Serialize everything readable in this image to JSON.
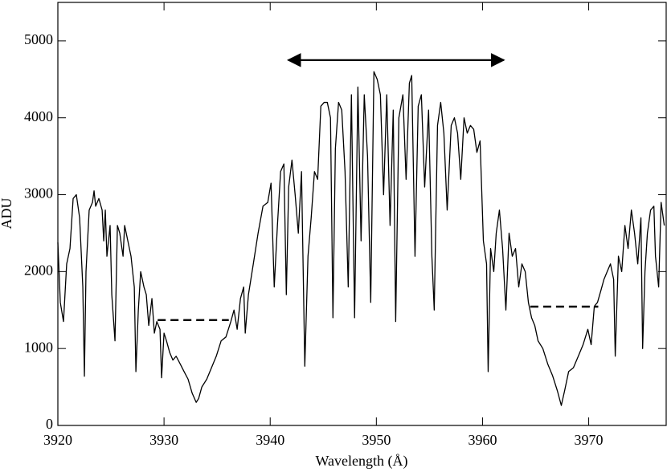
{
  "chart_data": {
    "type": "line",
    "xlabel": "Wavelength (Å)",
    "ylabel": "ADU",
    "color": "#000000",
    "xlim": [
      3920,
      3977.3
    ],
    "ylim": [
      0,
      5500
    ],
    "xticks": [
      3920,
      3930,
      3940,
      3950,
      3960,
      3970
    ],
    "yticks": [
      0,
      1000,
      2000,
      3000,
      4000,
      5000
    ],
    "x": [
      3920.0,
      3920.23,
      3920.53,
      3920.83,
      3921.14,
      3921.44,
      3921.74,
      3922.05,
      3922.35,
      3922.5,
      3922.65,
      3922.95,
      3923.26,
      3923.41,
      3923.56,
      3923.86,
      3924.17,
      3924.32,
      3924.47,
      3924.62,
      3924.92,
      3925.08,
      3925.38,
      3925.61,
      3925.83,
      3926.14,
      3926.29,
      3926.59,
      3926.89,
      3927.2,
      3927.35,
      3927.58,
      3927.8,
      3928.11,
      3928.33,
      3928.56,
      3928.86,
      3929.09,
      3929.32,
      3929.62,
      3929.77,
      3930.0,
      3930.23,
      3930.53,
      3930.83,
      3931.14,
      3931.52,
      3931.89,
      3932.27,
      3932.65,
      3933.03,
      3933.26,
      3933.56,
      3934.02,
      3934.47,
      3934.92,
      3935.38,
      3935.83,
      3936.29,
      3936.59,
      3936.89,
      3937.2,
      3937.5,
      3937.65,
      3937.95,
      3938.41,
      3938.86,
      3939.32,
      3939.77,
      3940.08,
      3940.38,
      3940.68,
      3940.98,
      3941.29,
      3941.52,
      3941.74,
      3942.05,
      3942.35,
      3942.65,
      3942.95,
      3943.26,
      3943.56,
      3943.86,
      3944.17,
      3944.47,
      3944.77,
      3945.08,
      3945.38,
      3945.68,
      3945.91,
      3946.14,
      3946.44,
      3946.74,
      3947.05,
      3947.35,
      3947.65,
      3947.95,
      3948.26,
      3948.56,
      3948.86,
      3949.17,
      3949.47,
      3949.77,
      3950.08,
      3950.38,
      3950.68,
      3950.98,
      3951.29,
      3951.59,
      3951.82,
      3952.12,
      3952.5,
      3952.8,
      3953.11,
      3953.33,
      3953.64,
      3953.94,
      3954.24,
      3954.55,
      3954.92,
      3955.23,
      3955.45,
      3955.76,
      3956.06,
      3956.36,
      3956.67,
      3957.05,
      3957.35,
      3957.65,
      3957.95,
      3958.26,
      3958.56,
      3958.86,
      3959.17,
      3959.47,
      3959.77,
      3960.08,
      3960.38,
      3960.53,
      3960.76,
      3961.06,
      3961.29,
      3961.59,
      3961.89,
      3962.2,
      3962.5,
      3962.8,
      3963.11,
      3963.41,
      3963.71,
      3964.02,
      3964.32,
      3964.62,
      3964.92,
      3965.23,
      3965.68,
      3966.14,
      3966.59,
      3967.05,
      3967.42,
      3967.73,
      3968.11,
      3968.56,
      3969.02,
      3969.47,
      3969.92,
      3970.23,
      3970.53,
      3970.83,
      3971.14,
      3971.44,
      3971.74,
      3972.05,
      3972.35,
      3972.5,
      3972.8,
      3973.11,
      3973.41,
      3973.71,
      3974.02,
      3974.32,
      3974.62,
      3974.92,
      3975.08,
      3975.3,
      3975.53,
      3975.83,
      3976.14,
      3976.29,
      3976.59,
      3976.82,
      3977.12
    ],
    "values": [
      2380,
      1600,
      1350,
      2100,
      2300,
      2950,
      3000,
      2700,
      1800,
      640,
      2000,
      2800,
      2900,
      3050,
      2850,
      2950,
      2800,
      2400,
      2800,
      2200,
      2600,
      1700,
      1100,
      2600,
      2500,
      2200,
      2600,
      2400,
      2200,
      1800,
      700,
      1500,
      2000,
      1800,
      1700,
      1300,
      1650,
      1200,
      1350,
      1250,
      620,
      1200,
      1100,
      950,
      850,
      900,
      800,
      700,
      600,
      420,
      300,
      350,
      500,
      600,
      750,
      900,
      1100,
      1150,
      1350,
      1500,
      1250,
      1650,
      1800,
      1200,
      1700,
      2100,
      2500,
      2850,
      2900,
      3150,
      1800,
      2600,
      3300,
      3400,
      1700,
      3100,
      3450,
      3000,
      2500,
      3300,
      770,
      2200,
      2700,
      3300,
      3200,
      4150,
      4200,
      4200,
      4000,
      1400,
      3600,
      4200,
      4100,
      3300,
      1800,
      4300,
      1400,
      4400,
      2400,
      4300,
      3500,
      1600,
      4600,
      4500,
      4300,
      3000,
      4300,
      2600,
      4100,
      1350,
      4000,
      4300,
      3200,
      4450,
      4550,
      2200,
      4150,
      4300,
      3100,
      4100,
      2200,
      1500,
      3900,
      4200,
      3800,
      2800,
      3900,
      4000,
      3800,
      3200,
      4000,
      3800,
      3900,
      3850,
      3550,
      3700,
      2400,
      2100,
      700,
      2300,
      2000,
      2500,
      2800,
      2300,
      1500,
      2500,
      2200,
      2300,
      1800,
      2100,
      2000,
      1600,
      1400,
      1300,
      1100,
      1000,
      800,
      650,
      450,
      260,
      450,
      700,
      750,
      900,
      1050,
      1250,
      1050,
      1550,
      1600,
      1750,
      1900,
      2000,
      2100,
      1900,
      900,
      2200,
      2000,
      2600,
      2300,
      2800,
      2500,
      2100,
      2700,
      1000,
      2000,
      2500,
      2800,
      2850,
      2200,
      1800,
      2900,
      2600
    ],
    "annotations": [
      {
        "style": "dashed",
        "x": [
          3929.4,
          3936.1
        ],
        "y": 1370
      },
      {
        "style": "dashed",
        "x": [
          3964.5,
          3970.9
        ],
        "y": 1545
      },
      {
        "style": "double-arrow",
        "x": [
          3941.7,
          3962.0
        ],
        "y": 4750
      }
    ]
  }
}
